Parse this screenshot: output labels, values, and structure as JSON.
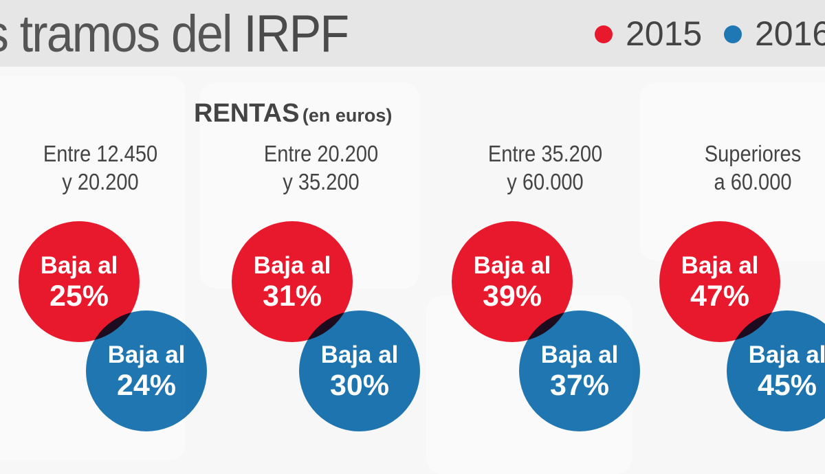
{
  "header": {
    "title_light": "s tramos del",
    "title_bold": "IRPF"
  },
  "legend": [
    {
      "label": "2015",
      "color": "#e8192c"
    },
    {
      "label": "2016",
      "color": "#1f78b4"
    }
  ],
  "subtitle": {
    "main": "RENTAS",
    "note": "(en euros)"
  },
  "brackets": [
    {
      "line1": "Entre 12.450",
      "line2": "y 20.200",
      "r2015": {
        "text": "Baja al",
        "value": "25%"
      },
      "r2016": {
        "text": "Baja al",
        "value": "24%"
      }
    },
    {
      "line1": "Entre 20.200",
      "line2": "y 35.200",
      "r2015": {
        "text": "Baja al",
        "value": "31%"
      },
      "r2016": {
        "text": "Baja al",
        "value": "30%"
      }
    },
    {
      "line1": "Entre 35.200",
      "line2": "y 60.000",
      "r2015": {
        "text": "Baja al",
        "value": "39%"
      },
      "r2016": {
        "text": "Baja al",
        "value": "37%"
      }
    },
    {
      "line1": "Superiores",
      "line2": "a 60.000",
      "r2015": {
        "text": "Baja al",
        "value": "47%"
      },
      "r2016": {
        "text": "Baja al",
        "value": "45%"
      }
    }
  ]
}
